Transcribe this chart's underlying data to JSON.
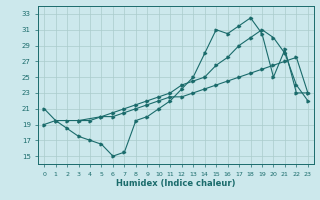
{
  "title": "",
  "xlabel": "Humidex (Indice chaleur)",
  "bg_color": "#cce8ec",
  "grid_color": "#aacccc",
  "line_color": "#1a6b6b",
  "xlim": [
    -0.5,
    23.5
  ],
  "ylim": [
    14,
    34
  ],
  "yticks": [
    15,
    17,
    19,
    21,
    23,
    25,
    27,
    29,
    31,
    33
  ],
  "xticks": [
    0,
    1,
    2,
    3,
    4,
    5,
    6,
    7,
    8,
    9,
    10,
    11,
    12,
    13,
    14,
    15,
    16,
    17,
    18,
    19,
    20,
    21,
    22,
    23
  ],
  "series1_x": [
    0,
    1,
    2,
    3,
    4,
    5,
    6,
    7,
    8,
    9,
    10,
    11,
    12,
    13,
    14,
    15,
    16,
    17,
    18,
    19,
    20,
    21,
    22,
    23
  ],
  "series1_y": [
    21,
    19.5,
    18.5,
    17.5,
    17,
    16.5,
    15,
    15.5,
    19.5,
    20,
    21,
    22,
    23.5,
    25,
    28,
    31,
    30.5,
    31.5,
    32.5,
    30.5,
    25,
    28.5,
    23,
    23
  ],
  "series2_x": [
    0,
    1,
    2,
    3,
    4,
    5,
    6,
    7,
    8,
    9,
    10,
    11,
    12,
    13,
    14,
    15,
    16,
    17,
    18,
    19,
    20,
    21,
    22,
    23
  ],
  "series2_y": [
    19,
    19.5,
    19.5,
    19.5,
    19.5,
    20,
    20,
    20.5,
    21,
    21.5,
    22,
    22.5,
    22.5,
    23,
    23.5,
    24,
    24.5,
    25,
    25.5,
    26,
    26.5,
    27,
    27.5,
    23
  ],
  "series3_x": [
    3,
    5,
    6,
    7,
    8,
    9,
    10,
    11,
    12,
    13,
    14,
    15,
    16,
    17,
    18,
    19,
    20,
    21,
    22,
    23
  ],
  "series3_y": [
    19.5,
    20,
    20.5,
    21,
    21.5,
    22,
    22.5,
    23,
    24,
    24.5,
    25,
    26.5,
    27.5,
    29,
    30,
    31,
    30,
    28,
    24,
    22
  ]
}
